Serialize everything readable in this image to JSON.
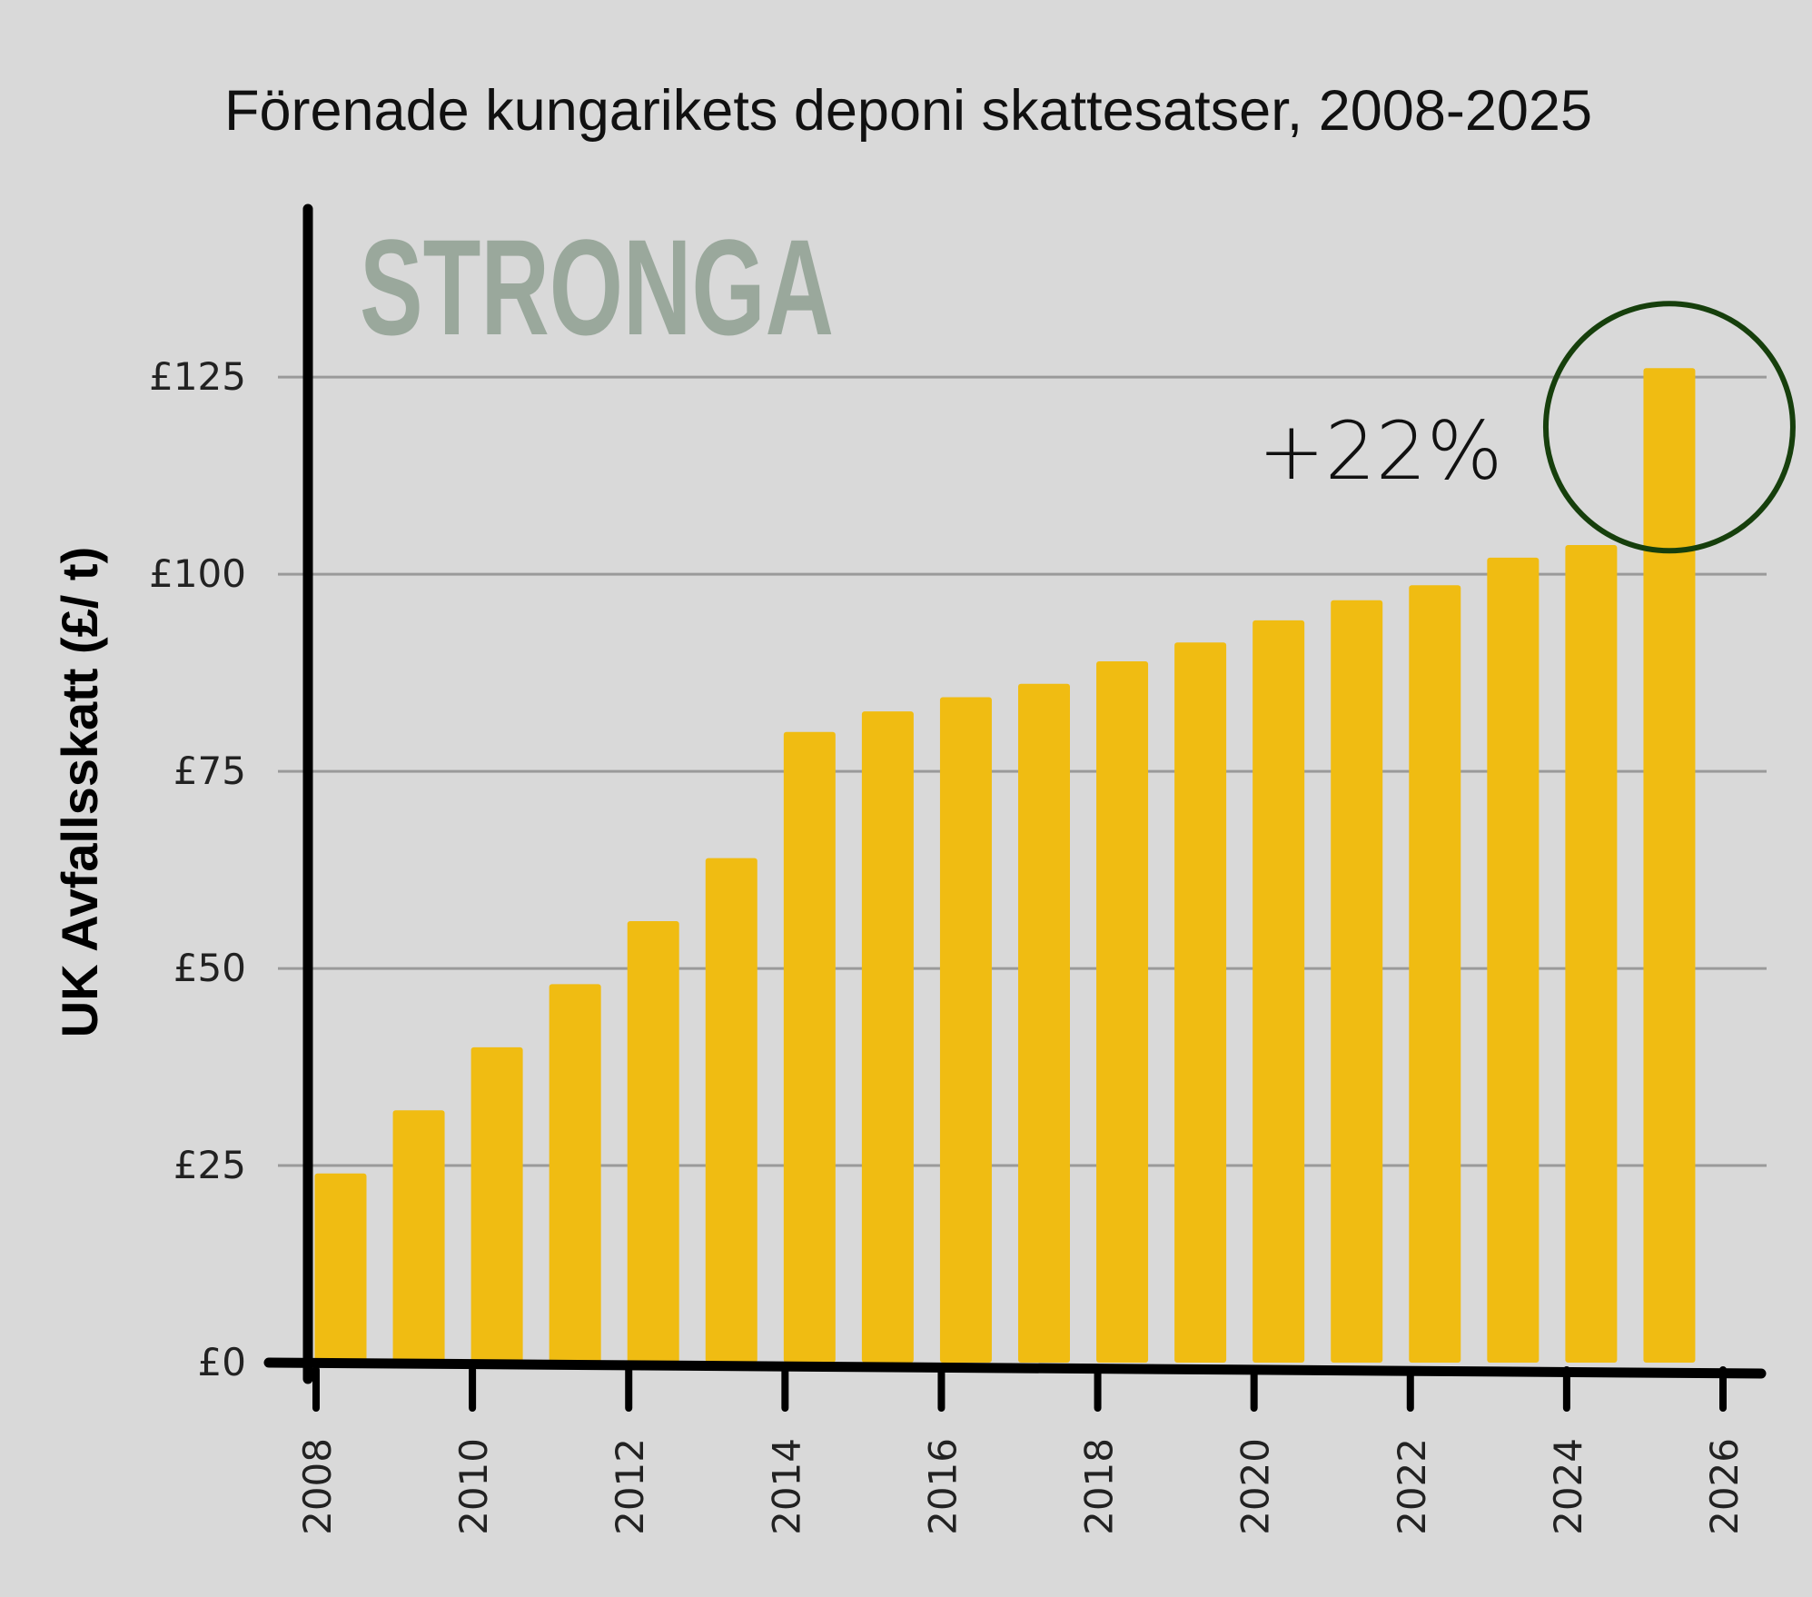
{
  "title": "Förenade kungarikets deponi skattesatser, 2008-2025",
  "watermark": "STRONGA",
  "colors": {
    "background": "#d9d9d9",
    "bar": "#f0bc12",
    "axis": "#000000",
    "grid": "#9a9a9a",
    "watermark": "#9aa89c",
    "highlight_circle": "#163f0c"
  },
  "chart_data": {
    "type": "bar",
    "ylabel": "UK Avfallsskatt (£/ t)",
    "xlabel": "",
    "x": [
      2008,
      2009,
      2010,
      2011,
      2012,
      2013,
      2014,
      2015,
      2016,
      2017,
      2018,
      2019,
      2020,
      2021,
      2022,
      2023,
      2024,
      2025
    ],
    "values": [
      24,
      32,
      40,
      48,
      56,
      64,
      80,
      82.6,
      84.4,
      86.1,
      88.95,
      91.35,
      94.15,
      96.7,
      98.6,
      102.1,
      103.7,
      126.15
    ],
    "ylim": [
      0,
      140
    ],
    "xlim": [
      2008,
      2026
    ],
    "y_ticks": [
      {
        "value": 0,
        "label": "£0"
      },
      {
        "value": 25,
        "label": "£25"
      },
      {
        "value": 50,
        "label": "£50"
      },
      {
        "value": 75,
        "label": "£75"
      },
      {
        "value": 100,
        "label": "£100"
      },
      {
        "value": 125,
        "label": "£125"
      }
    ],
    "x_ticks": [
      {
        "value": 2008,
        "label": "2008"
      },
      {
        "value": 2010,
        "label": "2010"
      },
      {
        "value": 2012,
        "label": "2012"
      },
      {
        "value": 2014,
        "label": "2014"
      },
      {
        "value": 2016,
        "label": "2016"
      },
      {
        "value": 2018,
        "label": "2018"
      },
      {
        "value": 2020,
        "label": "2020"
      },
      {
        "value": 2022,
        "label": "2022"
      },
      {
        "value": 2024,
        "label": "2024"
      },
      {
        "value": 2026,
        "label": "2026"
      }
    ],
    "grid": true,
    "annotation": {
      "text": "+22%",
      "highlight_year": 2025
    }
  }
}
